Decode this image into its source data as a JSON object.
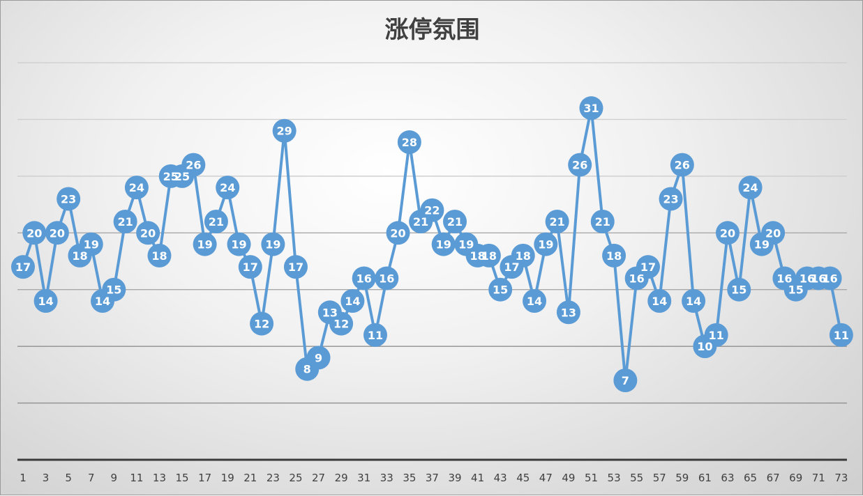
{
  "chart_data": {
    "type": "line",
    "title": "涨停氛围",
    "xlabel": "",
    "ylabel": "",
    "x": [
      1,
      2,
      3,
      4,
      5,
      6,
      7,
      8,
      9,
      10,
      11,
      12,
      13,
      14,
      15,
      16,
      17,
      18,
      19,
      20,
      21,
      22,
      23,
      24,
      25,
      26,
      27,
      28,
      29,
      30,
      31,
      32,
      33,
      34,
      35,
      36,
      37,
      38,
      39,
      40,
      41,
      42,
      43,
      44,
      45,
      46,
      47,
      48,
      49,
      50,
      51,
      52,
      53,
      54,
      55,
      56,
      57,
      58,
      59,
      60,
      61,
      62,
      63,
      64,
      65,
      66,
      67,
      68,
      69,
      70,
      71,
      72,
      73
    ],
    "x_tick_labels": [
      "1",
      "3",
      "5",
      "7",
      "9",
      "11",
      "13",
      "15",
      "17",
      "19",
      "21",
      "23",
      "25",
      "27",
      "29",
      "31",
      "33",
      "35",
      "37",
      "39",
      "41",
      "43",
      "45",
      "47",
      "49",
      "51",
      "53",
      "55",
      "57",
      "59",
      "61",
      "63",
      "65",
      "67",
      "69",
      "71",
      "73"
    ],
    "series": [
      {
        "values": [
          17,
          20,
          14,
          20,
          23,
          18,
          19,
          14,
          15,
          21,
          24,
          20,
          18,
          25,
          25,
          26,
          19,
          21,
          24,
          19,
          17,
          12,
          19,
          29,
          17,
          8,
          9,
          13,
          12,
          14,
          16,
          11,
          16,
          20,
          28,
          21,
          22,
          19,
          21,
          19,
          18,
          18,
          15,
          17,
          18,
          14,
          19,
          21,
          13,
          26,
          31,
          21,
          18,
          7,
          16,
          17,
          14,
          23,
          26,
          14,
          10,
          11,
          20,
          15,
          24,
          19,
          20,
          16,
          15,
          16,
          16,
          16,
          11
        ],
        "color": "#5b9bd5"
      }
    ],
    "ylim": [
      0,
      35
    ],
    "grid": true,
    "legend": "none",
    "data_labels": true,
    "colors": {
      "line": "#5b9bd5",
      "marker": "#5b9bd5",
      "label_text": "#ffffff",
      "gridline": "#b8b8b8",
      "axis": "#3a3a3a",
      "tick_text": "#404040",
      "title_text": "#404040"
    }
  }
}
